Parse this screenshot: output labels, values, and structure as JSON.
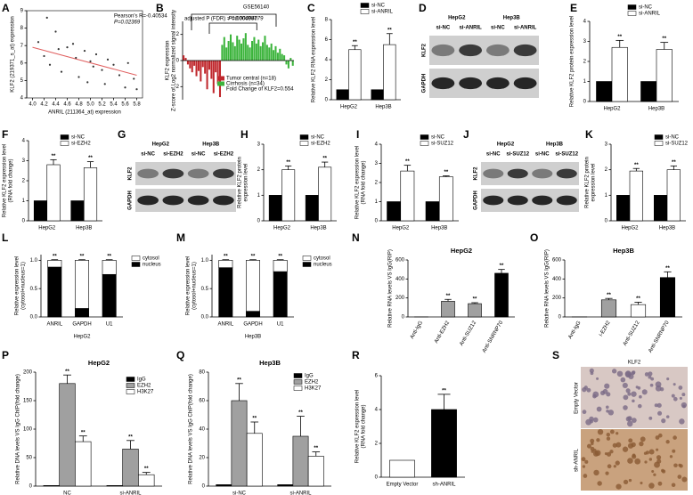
{
  "chart_data": [
    {
      "type": "scatter",
      "label": "A",
      "annotations": [
        "Pearson's R=-0.40534",
        "P=0.02369"
      ],
      "xlabel": "ANRIL (211364_at) expression",
      "ylabel": [
        "KLF2 (219371_s_at) expression"
      ],
      "x": [
        4.1,
        4.2,
        4.25,
        4.3,
        4.4,
        4.45,
        4.5,
        4.6,
        4.7,
        4.75,
        4.8,
        4.9,
        4.95,
        5.0,
        5.05,
        5.1,
        5.2,
        5.25,
        5.3,
        5.4,
        5.5,
        5.6,
        5.65,
        5.75,
        5.8
      ],
      "values": [
        7.2,
        6.4,
        8.6,
        5.9,
        7.8,
        6.8,
        5.5,
        6.9,
        7.1,
        6.3,
        5.2,
        6.7,
        4.9,
        6.1,
        5.8,
        6.5,
        5.6,
        4.8,
        6.2,
        5.9,
        5.3,
        4.6,
        6.0,
        5.1,
        4.5
      ],
      "color": "#333333",
      "fit": {
        "x": [
          4.0,
          5.8
        ],
        "y": [
          6.9,
          5.3
        ],
        "color": "#e06060"
      },
      "xlim": [
        3.9,
        5.9
      ],
      "ylim": [
        4,
        9
      ],
      "xticks": [
        {
          "value": 4,
          "label": "4.0"
        },
        4.2,
        4.4,
        4.6,
        4.8,
        {
          "value": 5,
          "label": "5.0"
        },
        5.2,
        5.4,
        5.6,
        5.8
      ],
      "yticks": [
        4,
        5,
        6,
        7,
        8,
        9
      ]
    },
    {
      "type": "waterfall",
      "label": "B",
      "title": "GSE56140",
      "annotations": [
        "P=0.00004079",
        "adjusted P (FDR) = 0.0004997"
      ],
      "ylabel": [
        "KLF2 expression",
        "Z-score of Log2 normalized signal intensity"
      ],
      "note": "Fold Change of KLF2=0.554",
      "series": [
        {
          "name": "Tumor central (n=18)",
          "color": "#c0282d",
          "values": [
            0.4,
            0.2,
            -0.3,
            -0.6,
            -0.9,
            -0.4,
            -1.2,
            -0.8,
            -1.6,
            -0.5,
            -1.0,
            -2.2,
            -0.7,
            -1.4,
            -2.5,
            -0.9,
            -1.8,
            -2.8
          ]
        },
        {
          "name": "Cirrhosis (n=34)",
          "color": "#3cb43c",
          "values": [
            1.2,
            1.8,
            1.0,
            1.5,
            2.0,
            1.4,
            1.1,
            1.9,
            1.6,
            1.3,
            1.7,
            2.1,
            1.2,
            1.0,
            1.5,
            1.8,
            1.3,
            1.6,
            1.1,
            1.4,
            1.9,
            1.2,
            1.0,
            1.3,
            0.8,
            1.1,
            0.6,
            0.9,
            0.5,
            0.4,
            -0.3,
            -0.6,
            0.2,
            -0.4
          ]
        }
      ],
      "ylim": [
        -3,
        3
      ],
      "yticks": [
        -2,
        0,
        2
      ]
    },
    {
      "type": "bar",
      "label": "C",
      "ylabel": [
        "Relative KLF2 RNA expression level"
      ],
      "categories": [
        "HepG2",
        "Hep3B"
      ],
      "annotation": "**",
      "series": [
        {
          "name": "si-NC",
          "color": "#000000",
          "values": [
            1,
            1
          ],
          "errors": [
            0,
            0
          ],
          "significant": [
            false,
            false
          ]
        },
        {
          "name": "si-ANRIL",
          "color": "#ffffff",
          "values": [
            5,
            5.5
          ],
          "errors": [
            0.4,
            1.1
          ],
          "significant": [
            true,
            true
          ]
        }
      ],
      "ylim": [
        0,
        8
      ],
      "yticks": [
        0,
        2,
        4,
        6,
        8
      ]
    },
    {
      "type": "blot",
      "label": "D",
      "groups": [
        "HepG2",
        "Hep3B"
      ],
      "lanes": [
        "si-NC",
        "si-ANRIL",
        "si-NC",
        "si-ANRIL"
      ],
      "rows": [
        "KLF2",
        "GAPDH"
      ]
    },
    {
      "type": "bar",
      "label": "E",
      "ylabel": [
        "Relative KLF2 protein  expression level"
      ],
      "categories": [
        "HepG2",
        "Hep3B"
      ],
      "annotation": "**",
      "series": [
        {
          "name": "si-NC",
          "color": "#000000",
          "values": [
            1,
            1
          ],
          "errors": [
            0,
            0
          ],
          "significant": [
            false,
            false
          ]
        },
        {
          "name": "si-ANRIL",
          "color": "#ffffff",
          "values": [
            2.7,
            2.6
          ],
          "errors": [
            0.35,
            0.35
          ],
          "significant": [
            true,
            true
          ]
        }
      ],
      "ylim": [
        0,
        4
      ],
      "yticks": [
        0,
        1,
        2,
        3,
        4
      ]
    },
    {
      "type": "bar",
      "label": "F",
      "ylabel": [
        "Relative KLF2 expression level",
        "(RNA fold change)"
      ],
      "categories": [
        "HepG2",
        "Hep3B"
      ],
      "annotation": "**",
      "series": [
        {
          "name": "si-NC",
          "color": "#000000",
          "values": [
            1,
            1
          ],
          "errors": [
            0,
            0
          ],
          "significant": [
            false,
            false
          ]
        },
        {
          "name": "si-EZH2",
          "color": "#ffffff",
          "values": [
            2.8,
            2.65
          ],
          "errors": [
            0.25,
            0.3
          ],
          "significant": [
            true,
            true
          ]
        }
      ],
      "ylim": [
        0,
        4
      ],
      "yticks": [
        0,
        1,
        2,
        3,
        4
      ]
    },
    {
      "type": "blot",
      "label": "G",
      "groups": [
        "HepG2",
        "Hep3B"
      ],
      "lanes": [
        "si-NC",
        "si-EZH2",
        "si-NC",
        "si-EZH2"
      ],
      "rows": [
        "KLF2",
        "GAPDH"
      ]
    },
    {
      "type": "bar",
      "label": "H",
      "ylabel": [
        "Relative KLF2 protein",
        "expression level"
      ],
      "categories": [
        "HepG2",
        "Hep3B"
      ],
      "annotation": "**",
      "series": [
        {
          "name": "si-NC",
          "color": "#000000",
          "values": [
            1,
            1
          ],
          "errors": [
            0,
            0
          ],
          "significant": [
            false,
            false
          ]
        },
        {
          "name": "si-EZH2",
          "color": "#ffffff",
          "values": [
            2.0,
            2.1
          ],
          "errors": [
            0.15,
            0.2
          ],
          "significant": [
            true,
            true
          ]
        }
      ],
      "ylim": [
        0,
        3
      ],
      "yticks": [
        0,
        1,
        2,
        3
      ]
    },
    {
      "type": "bar",
      "label": "I",
      "ylabel": [
        "Relative KLF2 expression level",
        "(RNA fold change)"
      ],
      "categories": [
        "HepG2",
        "Hep3B"
      ],
      "annotation": "**",
      "series": [
        {
          "name": "si-NC",
          "color": "#000000",
          "values": [
            1,
            1
          ],
          "errors": [
            0,
            0
          ],
          "significant": [
            false,
            false
          ]
        },
        {
          "name": "si-SUZ12",
          "color": "#ffffff",
          "values": [
            2.6,
            2.3
          ],
          "errors": [
            0.3,
            0.05
          ],
          "significant": [
            true,
            true
          ]
        }
      ],
      "ylim": [
        0,
        4
      ],
      "yticks": [
        0,
        1,
        2,
        3,
        4
      ]
    },
    {
      "type": "blot",
      "label": "J",
      "groups": [
        "HepG2",
        "Hep3B"
      ],
      "lanes": [
        "si-NC",
        "si-SUZ12",
        "si-NC",
        "si-SUZ12"
      ],
      "rows": [
        "KLF2",
        "GAPDH"
      ]
    },
    {
      "type": "bar",
      "label": "K",
      "ylabel": [
        "Relative KLF2 protein",
        "expression level"
      ],
      "categories": [
        "HepG2",
        "Hep3B"
      ],
      "annotation": "**",
      "series": [
        {
          "name": "si-NC",
          "color": "#000000",
          "values": [
            1,
            1
          ],
          "errors": [
            0,
            0
          ],
          "significant": [
            false,
            false
          ]
        },
        {
          "name": "si-SUZ12",
          "color": "#ffffff",
          "values": [
            1.95,
            2.0
          ],
          "errors": [
            0.1,
            0.15
          ],
          "significant": [
            true,
            true
          ]
        }
      ],
      "ylim": [
        0,
        3
      ],
      "yticks": [
        0,
        1,
        2,
        3
      ]
    },
    {
      "type": "bar",
      "stacked": true,
      "label": "L",
      "ylabel": [
        "Relative expression level",
        "(cytosol+nucleus=1)"
      ],
      "xlabel": "HepG2",
      "categories": [
        "ANRIL",
        "GAPDH",
        "U1"
      ],
      "annotation": "**",
      "series": [
        {
          "name": "cytosol",
          "color": "#ffffff",
          "values": [
            0.12,
            0.85,
            0.25
          ],
          "errors": [
            0.01,
            0.01,
            0.01
          ],
          "significant": [
            true,
            true,
            true
          ]
        },
        {
          "name": "nucleus",
          "color": "#000000",
          "values": [
            0.88,
            0.15,
            0.75
          ],
          "errors": [
            0.02,
            0.02,
            0.02
          ],
          "significant": [
            false,
            false,
            false
          ]
        }
      ],
      "ylim": [
        0,
        1.1
      ],
      "yticks": [
        {
          "value": 0,
          "label": "0.0"
        },
        {
          "value": 0.5,
          "label": "0.5"
        },
        {
          "value": 1,
          "label": "1.0"
        }
      ]
    },
    {
      "type": "bar",
      "stacked": true,
      "label": "M",
      "ylabel": [
        "Relative expression level",
        "(cytosol+nucleus=1)"
      ],
      "xlabel": "Hep3B",
      "categories": [
        "ANRIL",
        "GAPDH",
        "U1"
      ],
      "annotation": "**",
      "series": [
        {
          "name": "cytosol",
          "color": "#ffffff",
          "values": [
            0.13,
            0.9,
            0.2
          ],
          "errors": [
            0.01,
            0.01,
            0.01
          ],
          "significant": [
            true,
            true,
            true
          ]
        },
        {
          "name": "nucleus",
          "color": "#000000",
          "values": [
            0.87,
            0.1,
            0.8
          ],
          "errors": [
            0.03,
            0.02,
            0.08
          ],
          "significant": [
            false,
            false,
            false
          ]
        }
      ],
      "ylim": [
        0,
        1.1
      ],
      "yticks": [
        {
          "value": 0,
          "label": "0.0"
        },
        {
          "value": 0.5,
          "label": "0.5"
        },
        {
          "value": 1,
          "label": "1.0"
        }
      ]
    },
    {
      "type": "bar",
      "label": "N",
      "title": "HepG2",
      "ylabel": [
        "Relative RNA levels  VS IgG(RIP)"
      ],
      "categories": [
        "Anti-IgG",
        "Anti-EZH2",
        "Anti-SUZ12",
        "Anti-SNRNP70"
      ],
      "annotation": "**",
      "values": [
        1,
        165,
        140,
        460
      ],
      "errors": [
        0,
        20,
        10,
        40
      ],
      "colors": [
        "#a0a0a0",
        "#a0a0a0",
        "#a0a0a0",
        "#000000"
      ],
      "significant": [
        false,
        true,
        true,
        true
      ],
      "ylim": [
        0,
        600
      ],
      "yticks": [
        0,
        200,
        400,
        600
      ]
    },
    {
      "type": "bar",
      "label": "O",
      "title": "Hep3B",
      "ylabel": [
        "Relative RNA levels  VS IgG(RIP)"
      ],
      "categories": [
        "Anti-IgG",
        "i-EZH2",
        "Anti-SUZ12",
        "Anti-SNRNP70"
      ],
      "annotation": "**",
      "values": [
        1,
        180,
        130,
        415
      ],
      "errors": [
        0,
        15,
        25,
        60
      ],
      "colors": [
        "#a0a0a0",
        "#a0a0a0",
        "#ffffff",
        "#000000"
      ],
      "significant": [
        false,
        true,
        true,
        true
      ],
      "ylim": [
        0,
        600
      ],
      "yticks": [
        0,
        200,
        400,
        600
      ]
    },
    {
      "type": "bar",
      "label": "P",
      "title": "HepG2",
      "ylabel": [
        "Relative DNA levels  VS IgG ChIP(fold change)"
      ],
      "categories": [
        "NC",
        "si-ANRIL"
      ],
      "annotation": "**",
      "series": [
        {
          "name": "IgG",
          "color": "#000000",
          "values": [
            1,
            1
          ],
          "errors": [
            0,
            0
          ],
          "significant": [
            false,
            false
          ]
        },
        {
          "name": "EZH2",
          "color": "#a0a0a0",
          "values": [
            180,
            65
          ],
          "errors": [
            15,
            15
          ],
          "significant": [
            true,
            true
          ]
        },
        {
          "name": "H3K27",
          "color": "#ffffff",
          "values": [
            78,
            20
          ],
          "errors": [
            10,
            4
          ],
          "significant": [
            true,
            true
          ]
        }
      ],
      "ylim": [
        0,
        200
      ],
      "yticks": [
        0,
        50,
        100,
        150,
        200
      ]
    },
    {
      "type": "bar",
      "label": "Q",
      "title": "Hep3B",
      "ylabel": [
        "Relative DNA levels  VS IgG ChIP(fold change)"
      ],
      "categories": [
        "si-NC",
        "si-ANRIL"
      ],
      "annotation": "**",
      "series": [
        {
          "name": "IgG",
          "color": "#000000",
          "values": [
            1,
            1
          ],
          "errors": [
            0,
            0
          ],
          "significant": [
            false,
            false
          ]
        },
        {
          "name": "EZH2",
          "color": "#a0a0a0",
          "values": [
            60,
            35
          ],
          "errors": [
            12,
            14
          ],
          "significant": [
            true,
            true
          ]
        },
        {
          "name": "H3K27",
          "color": "#ffffff",
          "values": [
            37,
            21
          ],
          "errors": [
            8,
            3
          ],
          "significant": [
            true,
            true
          ]
        }
      ],
      "ylim": [
        0,
        80
      ],
      "yticks": [
        0,
        20,
        40,
        60,
        80
      ]
    },
    {
      "type": "bar",
      "label": "R",
      "ylabel": [
        "Relative KLF2 expression level",
        "(RNA fold change)"
      ],
      "categories": [
        "Empty Vector",
        "sh-ANRIL"
      ],
      "annotation": "**",
      "values": [
        1,
        4
      ],
      "errors": [
        0,
        0.9
      ],
      "colors": [
        "#ffffff",
        "#000000"
      ],
      "significant": [
        false,
        true
      ],
      "ylim": [
        0,
        6
      ],
      "yticks": [
        0,
        2,
        4,
        6
      ]
    },
    {
      "type": "image",
      "label": "S",
      "title": "KLF2",
      "rows": [
        "Empty Vector",
        "sh-ANRIL"
      ]
    }
  ]
}
